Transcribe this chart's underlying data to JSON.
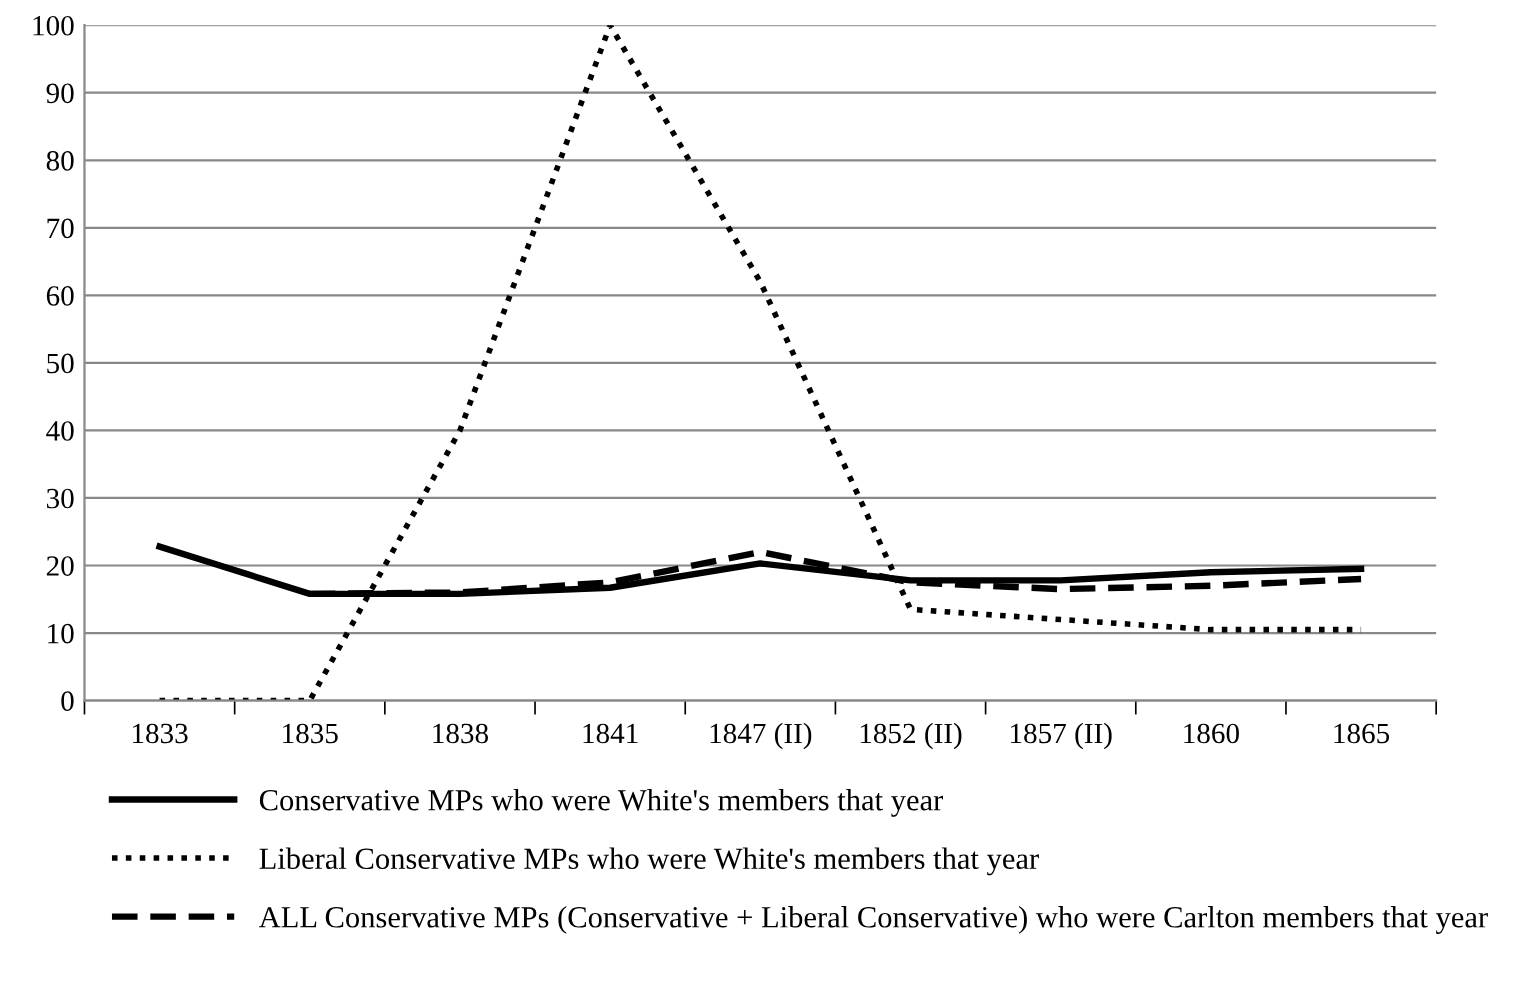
{
  "chart_data": {
    "type": "line",
    "categories": [
      "1833",
      "1835",
      "1838",
      "1841",
      "1847 (II)",
      "1852 (II)",
      "1857 (II)",
      "1860",
      "1865"
    ],
    "series": [
      {
        "name": "Conservative MPs who were White's members that year",
        "color": "#000000",
        "line_style": "solid",
        "values": [
          22.8,
          15.8,
          15.8,
          16.7,
          20.3,
          17.8,
          17.8,
          19,
          19.5
        ]
      },
      {
        "name": "Liberal Conservative MPs who were White's members that year",
        "color": "#000000",
        "line_style": "dotted",
        "values": [
          0,
          0,
          40,
          100,
          62,
          13.5,
          12,
          10.5,
          10.5
        ]
      },
      {
        "name": "ALL Conservative MPs (Conservative + Liberal Conservative) who were Carlton members that year",
        "color": "#000000",
        "line_style": "dashed",
        "values": [
          null,
          15.8,
          16,
          17.5,
          22,
          17.5,
          16.5,
          17,
          18
        ]
      }
    ],
    "ylim": [
      0,
      100
    ],
    "yticks": [
      0,
      10,
      20,
      30,
      40,
      50,
      60,
      70,
      80,
      90,
      100
    ],
    "grid": "y",
    "legend": "bottom",
    "marker": "none"
  }
}
